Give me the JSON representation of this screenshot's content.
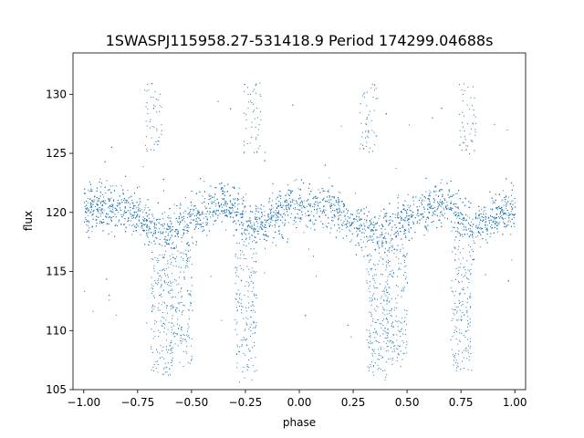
{
  "chart_data": {
    "type": "scatter",
    "title": "1SWASPJ115958.27-531418.9 Period 174299.04688s",
    "xlabel": "phase",
    "ylabel": "flux",
    "xlim": [
      -1.05,
      1.05
    ],
    "ylim": [
      105,
      133.5
    ],
    "xticks": [
      "-1.00",
      "-0.75",
      "-0.50",
      "-0.25",
      "0.00",
      "0.25",
      "0.50",
      "0.75",
      "1.00"
    ],
    "yticks": [
      "105",
      "110",
      "115",
      "120",
      "125",
      "130"
    ],
    "grid": false,
    "point_color": "#1f77b4",
    "period_s": 174299.04688,
    "series": [
      {
        "values": {
          "x": [
            -1.0,
            -0.9,
            -0.8,
            -0.75,
            -0.7,
            -0.65,
            -0.62,
            -0.6,
            -0.55,
            -0.5,
            -0.45,
            -0.4,
            -0.35,
            -0.3,
            -0.25,
            -0.2,
            -0.15,
            -0.1,
            -0.05,
            0.0,
            0.05,
            0.1,
            0.15,
            0.2,
            0.25,
            0.3,
            0.35,
            0.38,
            0.4,
            0.45,
            0.5,
            0.55,
            0.6,
            0.65,
            0.7,
            0.75,
            0.8,
            0.85,
            0.9,
            0.95,
            1.0
          ],
          "y": [
            120.3,
            120.6,
            120.3,
            119.6,
            118.9,
            118.4,
            118.3,
            118.6,
            119.3,
            119.4,
            120.0,
            120.6,
            120.9,
            120.2,
            119.3,
            118.9,
            119.3,
            119.9,
            120.4,
            120.6,
            120.5,
            120.4,
            120.3,
            119.9,
            119.3,
            118.7,
            118.3,
            118.3,
            118.5,
            119.3,
            119.5,
            120.1,
            120.6,
            120.9,
            120.3,
            119.4,
            118.9,
            119.2,
            119.7,
            120.1,
            120.3
          ]
        }
      }
    ],
    "dips": [
      {
        "x": -0.64,
        "y_min": 106.3
      },
      {
        "x": -0.55,
        "y_min": 107.5
      },
      {
        "x": -0.25,
        "y_min": 106.5
      },
      {
        "x": 0.36,
        "y_min": 106.3
      },
      {
        "x": 0.45,
        "y_min": 107.5
      },
      {
        "x": 0.75,
        "y_min": 106.5
      }
    ]
  }
}
